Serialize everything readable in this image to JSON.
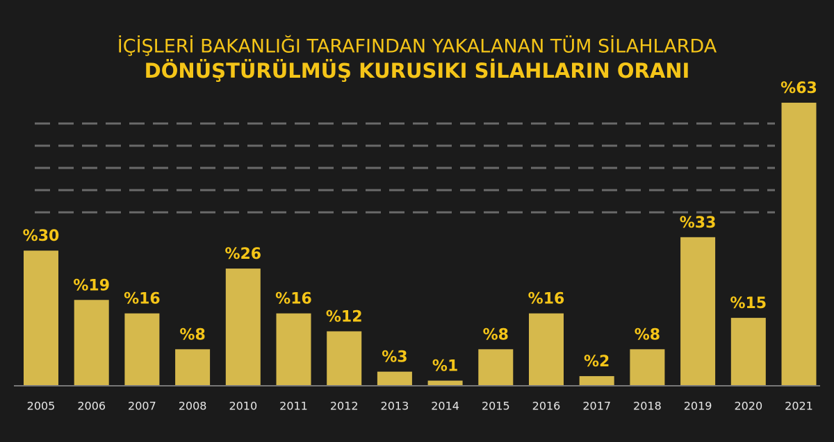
{
  "chart_data": {
    "type": "bar",
    "title": "İÇİŞLERİ BAKANLIĞI TARAFINDAN YAKALANAN TÜM SİLAHLARDA",
    "subtitle": "DÖNÜŞTÜRÜLMÜŞ KURUSIKI SİLAHLARIN ORANI",
    "categories": [
      "2005",
      "2006",
      "2007",
      "2008",
      "2010",
      "2011",
      "2012",
      "2013",
      "2014",
      "2015",
      "2016",
      "2017",
      "2018",
      "2019",
      "2020",
      "2021"
    ],
    "values": [
      30,
      19,
      16,
      8,
      26,
      16,
      12,
      3,
      1,
      8,
      16,
      2,
      8,
      33,
      15,
      63
    ],
    "value_labels": [
      "%30",
      "%19",
      "%16",
      "%8",
      "%26",
      "%16",
      "%12",
      "%3",
      "%1",
      "%8",
      "%16",
      "%2",
      "%8",
      "%33",
      "%15",
      "%63"
    ],
    "color": "#d6b94c"
  }
}
